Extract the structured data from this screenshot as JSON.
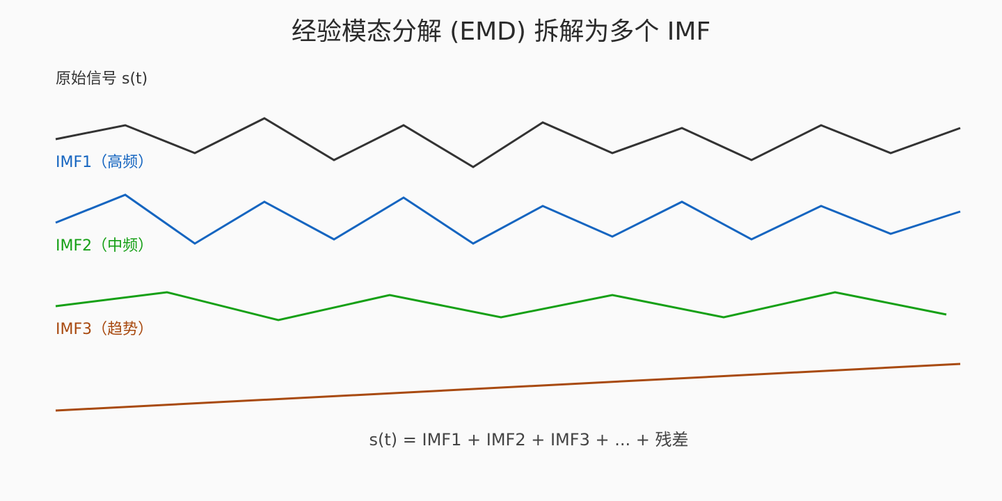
{
  "title": "经验模态分解 (EMD) 拆解为多个 IMF",
  "formula": "s(t) = IMF1 + IMF2 + IMF3 + ... + 残差",
  "signals": [
    {
      "id": "original",
      "label": "原始信号 s(t)",
      "label_color": "#333333",
      "color": "#333333",
      "waveform": [
        0,
        1,
        -1,
        1.5,
        -1.5,
        1,
        -2,
        1.2,
        -1,
        0.8,
        -1.5,
        1,
        -1,
        0.8
      ]
    },
    {
      "id": "imf1",
      "label": "IMF1（高频）",
      "label_color": "#1565c0",
      "color": "#1565c0",
      "waveform": [
        0,
        2,
        -1.5,
        1.5,
        -1.2,
        1.8,
        -1.5,
        1.2,
        -1,
        1.5,
        -1.2,
        1.2,
        -0.8,
        0.8
      ]
    },
    {
      "id": "imf2",
      "label": "IMF2（中频）",
      "label_color": "#16a016",
      "color": "#16a016",
      "waveform": [
        0,
        1,
        -1,
        0.8,
        -0.8,
        0.8,
        -0.8,
        1,
        -0.6
      ]
    },
    {
      "id": "imf3",
      "label": "IMF3（趋势）",
      "label_color": "#a84a10",
      "color": "#a84a10",
      "waveform": [
        0,
        1
      ]
    }
  ]
}
